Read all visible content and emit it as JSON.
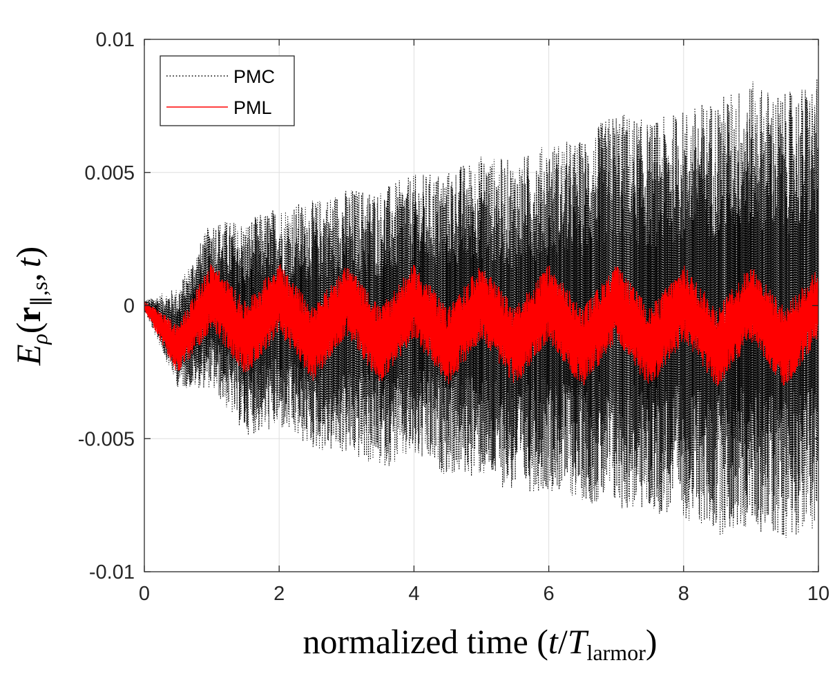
{
  "chart_data": {
    "type": "line",
    "title": "",
    "xlabel": "normalized time (t/T_larmor)",
    "xlabel_parts": {
      "prefix": "normalized time (",
      "t": "t",
      "slash": "/",
      "T": "T",
      "sub": "larmor",
      "suffix": ")"
    },
    "ylabel": "E_ρ(r_∥,s, t)",
    "ylabel_parts": {
      "E": "E",
      "rho": "ρ",
      "open": "(",
      "r": "r",
      "par": "∥,s",
      "comma": ",",
      "t": "t",
      "close": ")"
    },
    "xlim": [
      0,
      10
    ],
    "ylim": [
      -0.01,
      0.01
    ],
    "x_ticks": [
      0,
      2,
      4,
      6,
      8,
      10
    ],
    "x_tick_labels": [
      "0",
      "2",
      "4",
      "6",
      "8",
      "10"
    ],
    "y_ticks": [
      -0.01,
      -0.005,
      0,
      0.005,
      0.01
    ],
    "y_tick_labels": [
      "-0.01",
      "-0.005",
      "0",
      "0.005",
      "0.01"
    ],
    "grid": true,
    "legend_position": "top-left",
    "series": [
      {
        "name": "PMC",
        "style": "dotted",
        "color": "#000000",
        "envelope": {
          "x": [
            0,
            0.5,
            1.0,
            1.5,
            2.0,
            2.5,
            3.0,
            3.5,
            4.0,
            4.5,
            5.0,
            5.5,
            6.0,
            6.5,
            7.0,
            7.5,
            8.0,
            8.5,
            9.0,
            9.5,
            10.0
          ],
          "upper": [
            0.0002,
            0.0008,
            0.0034,
            0.0034,
            0.004,
            0.0042,
            0.0047,
            0.0047,
            0.0052,
            0.0054,
            0.006,
            0.0058,
            0.0065,
            0.0066,
            0.0078,
            0.0073,
            0.0078,
            0.0083,
            0.0089,
            0.0084,
            0.009
          ],
          "lower": [
            -0.0002,
            -0.0032,
            -0.0033,
            -0.0051,
            -0.0049,
            -0.0057,
            -0.0059,
            -0.0064,
            -0.0061,
            -0.0067,
            -0.0068,
            -0.0074,
            -0.0073,
            -0.0077,
            -0.0081,
            -0.0082,
            -0.0084,
            -0.0091,
            -0.0089,
            -0.0092,
            -0.0088
          ]
        }
      },
      {
        "name": "PML",
        "style": "solid",
        "color": "#ff0000",
        "envelope": {
          "x": [
            0,
            0.5,
            1.0,
            1.5,
            2.0,
            2.5,
            3.0,
            3.5,
            4.0,
            4.5,
            5.0,
            5.5,
            6.0,
            6.5,
            7.0,
            7.5,
            8.0,
            8.5,
            9.0,
            9.5,
            10.0
          ],
          "upper": [
            0.0002,
            -0.0005,
            0.0019,
            0.0004,
            0.0019,
            0.0002,
            0.0018,
            0.0002,
            0.0018,
            0.0002,
            0.0018,
            0.0002,
            0.0018,
            0.0002,
            0.0018,
            0.0002,
            0.0018,
            0.0002,
            0.0018,
            0.0002,
            0.0017
          ],
          "lower": [
            -0.0002,
            -0.0028,
            -0.0011,
            -0.0029,
            -0.0013,
            -0.0031,
            -0.0014,
            -0.0032,
            -0.0015,
            -0.0033,
            -0.0015,
            -0.0033,
            -0.0016,
            -0.0034,
            -0.0016,
            -0.0034,
            -0.0016,
            -0.0034,
            -0.0016,
            -0.0034,
            -0.0015
          ]
        }
      }
    ]
  }
}
